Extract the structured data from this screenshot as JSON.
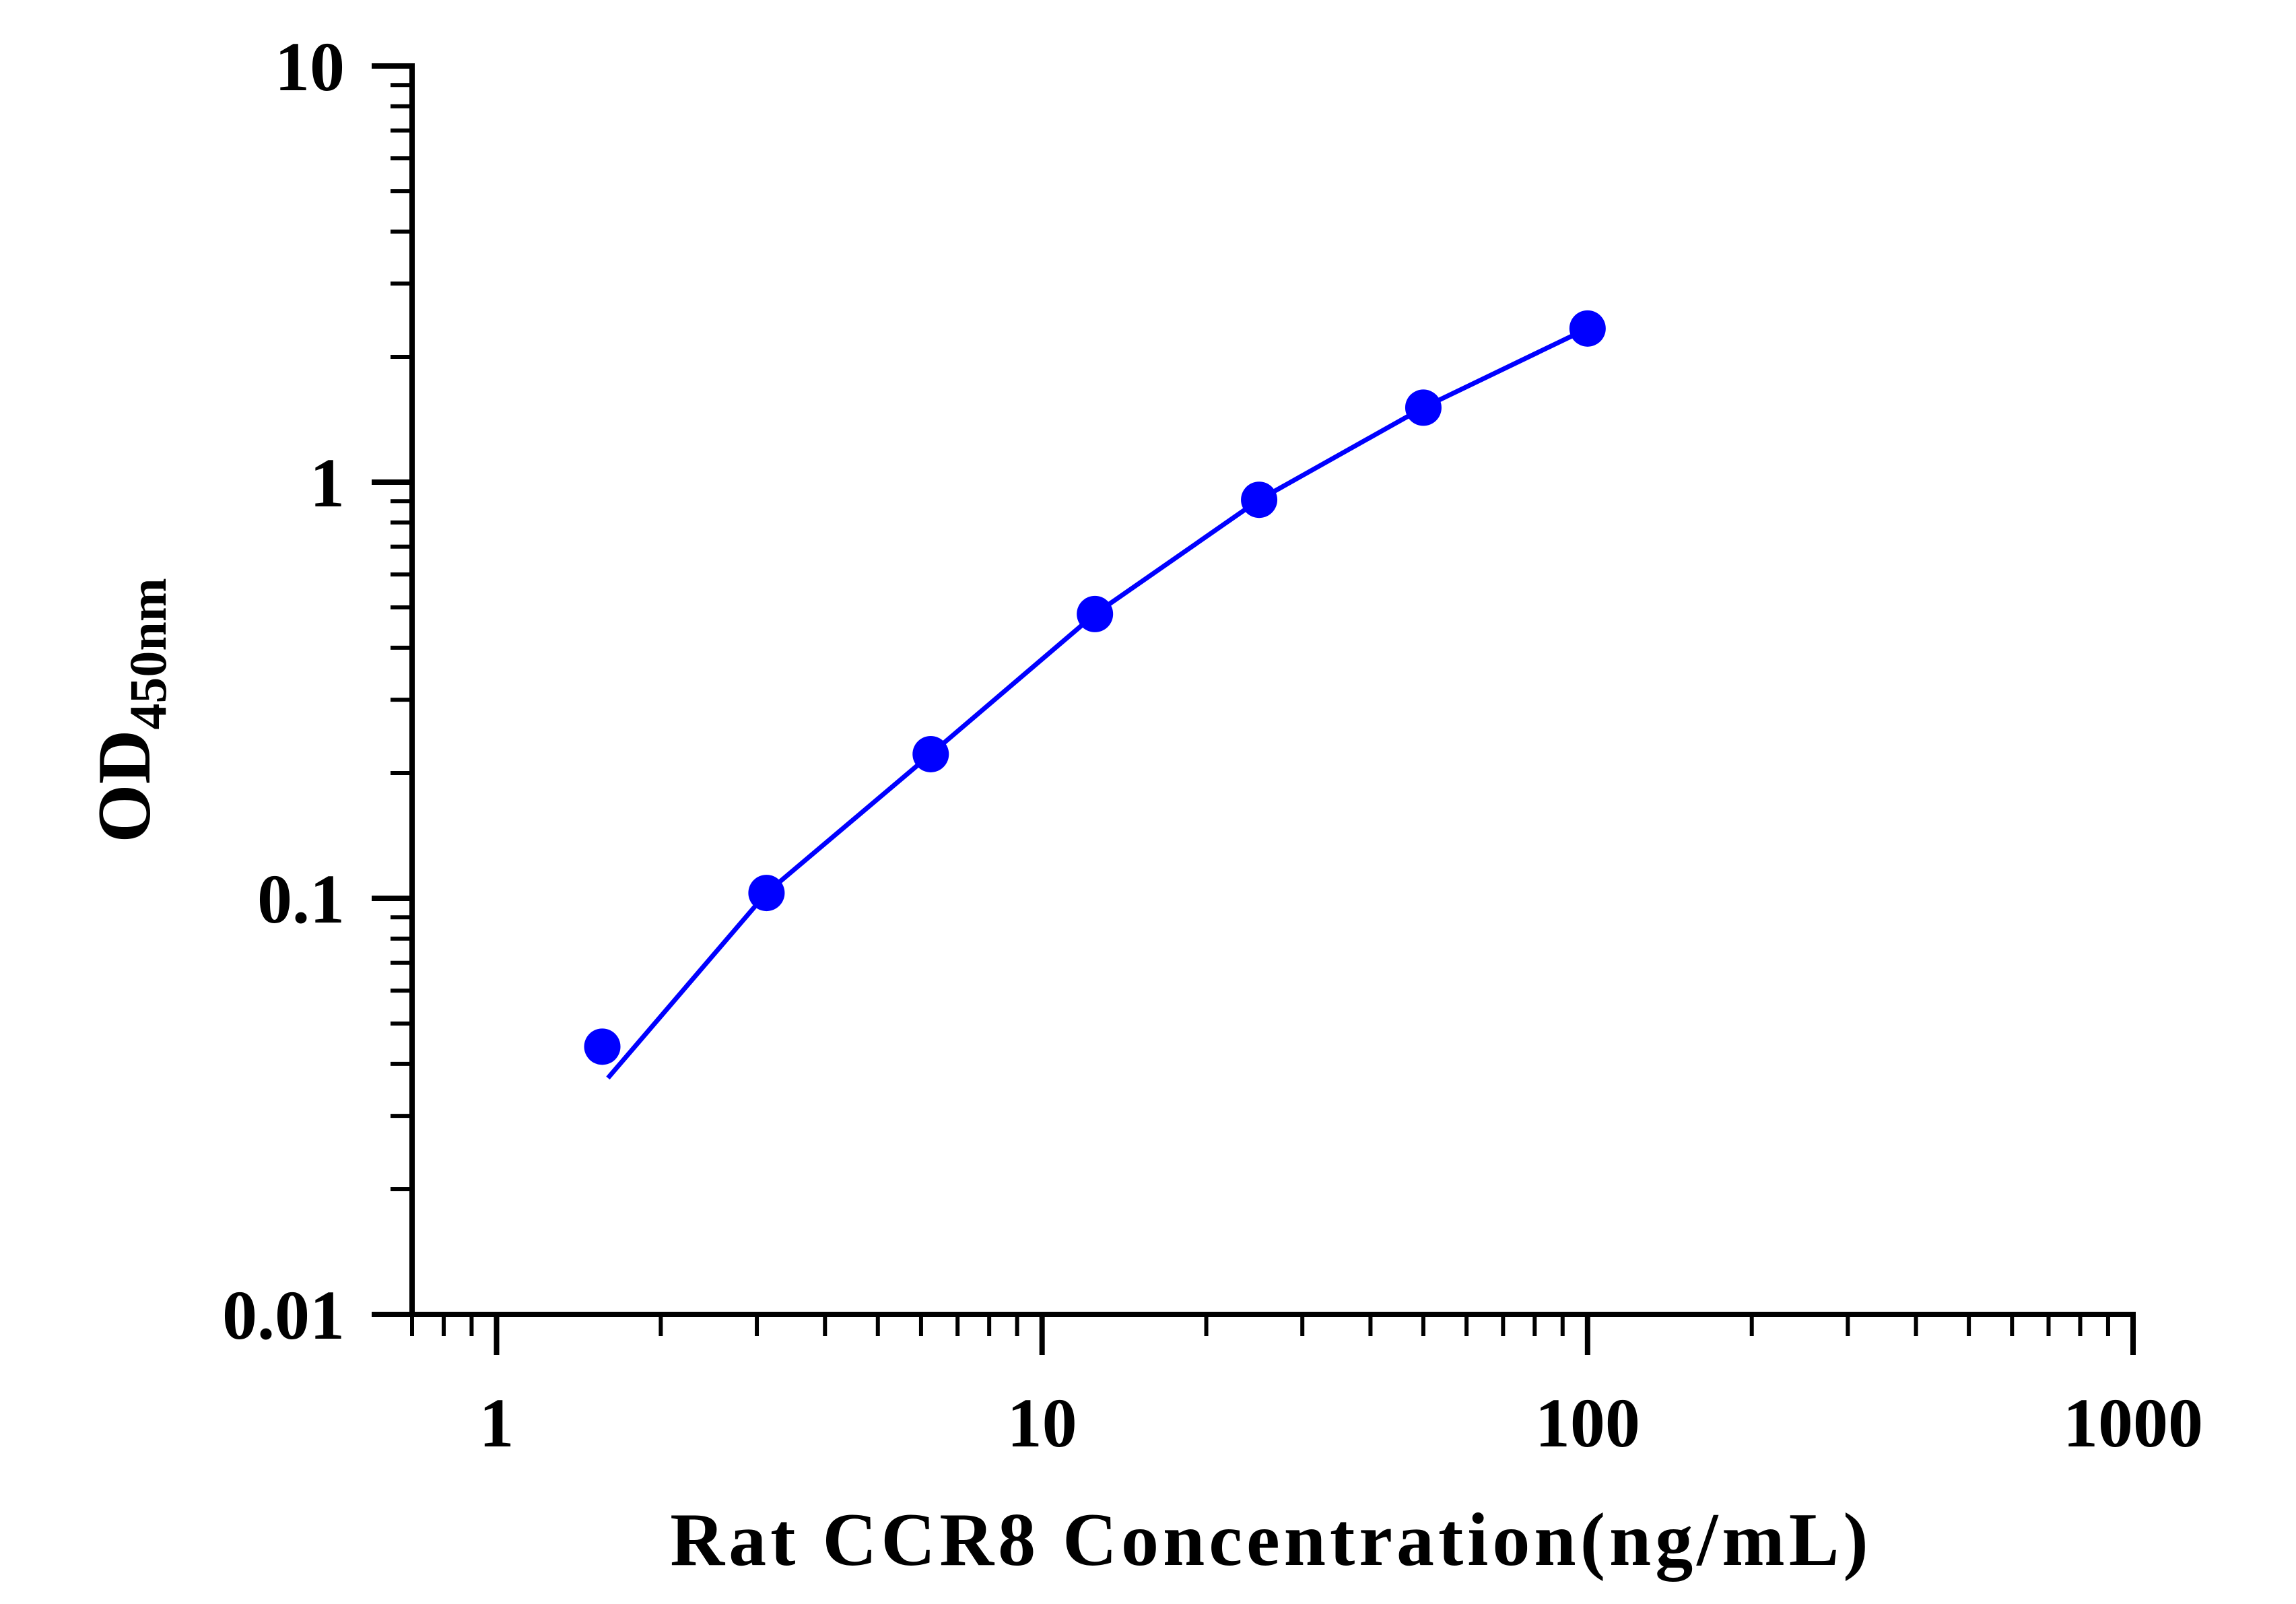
{
  "chart_data": {
    "type": "scatter",
    "title": "",
    "xlabel": "Rat CCR8 Concentration(ng/mL)",
    "ylabel": {
      "main": "OD",
      "subscript": "450nm"
    },
    "x_scale": "log",
    "y_scale": "log",
    "xlim": [
      0.7,
      1000
    ],
    "ylim": [
      0.01,
      10
    ],
    "x_tick_labels": [
      {
        "value": 1,
        "label": "1"
      },
      {
        "value": 10,
        "label": "10"
      },
      {
        "value": 100,
        "label": "100"
      },
      {
        "value": 1000,
        "label": "1000"
      }
    ],
    "y_tick_labels": [
      {
        "value": 0.01,
        "label": "0.01"
      },
      {
        "value": 0.1,
        "label": "0.1"
      },
      {
        "value": 1,
        "label": "1"
      },
      {
        "value": 10,
        "label": "10"
      }
    ],
    "grid": false,
    "legend": "none",
    "series": [
      {
        "color": "#0000ff",
        "x": [
          1.5625,
          3.125,
          6.25,
          12.5,
          25,
          50,
          100
        ],
        "y": [
          0.044,
          0.103,
          0.222,
          0.482,
          0.907,
          1.51,
          2.34
        ],
        "fit_curve": {
          "x": [
            1.6,
            3.125,
            6.25,
            12.5,
            25,
            50,
            100
          ],
          "y": [
            0.037,
            0.103,
            0.222,
            0.482,
            0.907,
            1.51,
            2.34
          ]
        }
      }
    ],
    "colors": {
      "series": "#0000ff",
      "axis": "#000000"
    }
  }
}
